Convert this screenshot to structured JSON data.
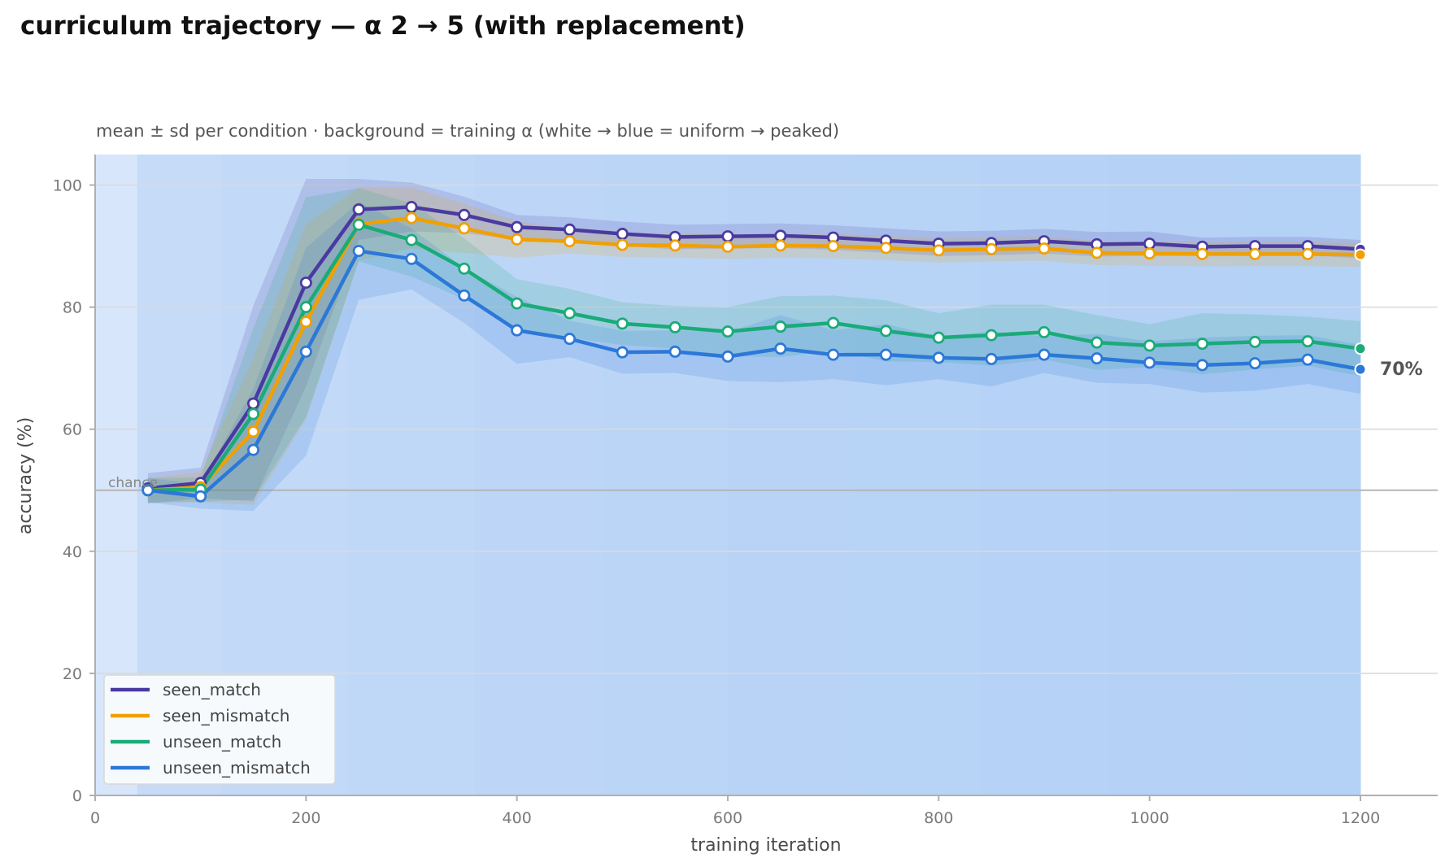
{
  "title": "curriculum trajectory — α 2 → 5 (with replacement)",
  "chart_data": {
    "type": "line",
    "subtitle": "mean ± sd per condition · background = training α (white → blue = uniform → peaked)",
    "xlabel": "training iteration",
    "ylabel": "accuracy (%)",
    "xlim": [
      0,
      1275
    ],
    "ylim": [
      0,
      105
    ],
    "xticks": [
      0,
      200,
      400,
      600,
      800,
      1000,
      1200
    ],
    "yticks": [
      0,
      20,
      40,
      60,
      80,
      100
    ],
    "grid": "horizontal",
    "legend_position": "lower-left",
    "chance": {
      "value": 50,
      "label": "chance"
    },
    "end_annotation": {
      "label": "70%",
      "series": "unseen_mismatch",
      "x": 1200,
      "y": 69.8
    },
    "x": [
      50,
      100,
      150,
      200,
      250,
      300,
      350,
      400,
      450,
      500,
      550,
      600,
      650,
      700,
      750,
      800,
      850,
      900,
      950,
      1000,
      1050,
      1100,
      1150,
      1200
    ],
    "series": [
      {
        "name": "seen_match",
        "color": "#4a3aa0",
        "values": [
          50.3,
          51.2,
          64.2,
          84.0,
          96.0,
          96.4,
          95.1,
          93.1,
          92.7,
          92.0,
          91.5,
          91.6,
          91.7,
          91.4,
          90.9,
          90.4,
          90.5,
          90.8,
          90.3,
          90.4,
          89.9,
          90.0,
          90.0,
          89.5
        ],
        "sd": [
          2.5,
          2.5,
          16,
          17,
          5,
          4,
          3,
          2,
          2,
          2,
          2,
          2,
          2,
          2,
          2,
          2,
          2,
          2,
          2,
          2,
          1.5,
          1.5,
          1.5,
          1.5
        ]
      },
      {
        "name": "seen_mismatch",
        "color": "#f0a000",
        "values": [
          50.0,
          50.5,
          59.6,
          77.6,
          93.6,
          94.6,
          92.9,
          91.1,
          90.8,
          90.2,
          90.1,
          89.9,
          90.1,
          90.0,
          89.7,
          89.3,
          89.5,
          89.6,
          88.9,
          88.8,
          88.7,
          88.7,
          88.7,
          88.6
        ],
        "sd": [
          2,
          2.5,
          12,
          16,
          6,
          5,
          4,
          3,
          2,
          2,
          2,
          2,
          2,
          2,
          2,
          2,
          2,
          2,
          2,
          2,
          2,
          2,
          2,
          2
        ]
      },
      {
        "name": "unseen_match",
        "color": "#1aab78",
        "values": [
          50.0,
          50.1,
          62.5,
          80.0,
          93.5,
          91.0,
          86.3,
          80.6,
          79.0,
          77.3,
          76.7,
          76.0,
          76.8,
          77.4,
          76.1,
          75.0,
          75.4,
          75.9,
          74.2,
          73.7,
          74.0,
          74.3,
          74.4,
          73.2
        ],
        "sd": [
          2,
          2,
          14,
          18,
          6,
          6,
          5,
          4,
          4,
          3.5,
          3.5,
          4,
          5,
          4.5,
          5,
          4,
          5,
          4.5,
          4.5,
          3.5,
          5,
          4.5,
          4,
          4.5
        ]
      },
      {
        "name": "unseen_mismatch",
        "color": "#2c78d8",
        "values": [
          50.0,
          49.0,
          56.6,
          72.7,
          89.2,
          87.9,
          81.9,
          76.2,
          74.8,
          72.6,
          72.7,
          71.9,
          73.2,
          72.2,
          72.2,
          71.7,
          71.5,
          72.2,
          71.6,
          70.9,
          70.5,
          70.8,
          71.4,
          69.8
        ],
        "sd": [
          2,
          2,
          10,
          17,
          8,
          5,
          4.5,
          5.5,
          3,
          3.5,
          3.5,
          4,
          5.5,
          4,
          5,
          3.5,
          4.5,
          3,
          4,
          3.5,
          4.5,
          4.5,
          4,
          4
        ]
      }
    ],
    "background": {
      "description_levels": [
        0.0,
        0.15,
        0.3,
        0.45,
        0.6,
        0.72,
        0.82,
        0.9,
        0.96,
        1.0
      ],
      "colors": {
        "uniform": "#ffffff",
        "peaked": "#a6c8f4"
      }
    }
  }
}
